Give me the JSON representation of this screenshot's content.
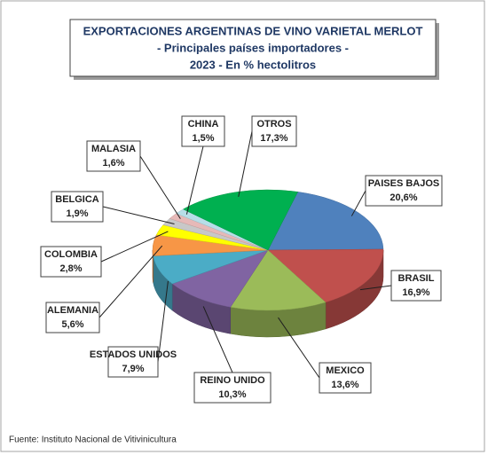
{
  "chart_data": {
    "type": "pie",
    "title": [
      "EXPORTACIONES ARGENTINAS DE VINO VARIETAL MERLOT",
      "- Principales países importadores -",
      "2023 - En % hectolitros"
    ],
    "source": "Fuente: Instituto Nacional de Vitivinicultura",
    "categories": [
      "PAISES BAJOS",
      "BRASIL",
      "MEXICO",
      "REINO UNIDO",
      "ESTADOS UNIDOS",
      "ALEMANIA",
      "COLOMBIA",
      "BELGICA",
      "MALASIA",
      "CHINA",
      "OTROS"
    ],
    "values": [
      20.6,
      16.9,
      13.6,
      10.3,
      7.9,
      5.6,
      2.8,
      1.9,
      1.6,
      1.5,
      17.3
    ],
    "value_labels": [
      "20,6%",
      "16,9%",
      "13,6%",
      "10,3%",
      "7,9%",
      "5,6%",
      "2,8%",
      "1,9%",
      "1,6%",
      "1,5%",
      "17,3%"
    ],
    "colors": [
      "#4f81bd",
      "#c0504d",
      "#9bbb59",
      "#8064a2",
      "#4bacc6",
      "#f79646",
      "#ffff00",
      "#c8c8c8",
      "#e6b9b8",
      "#b7dee8",
      "#00b050"
    ]
  }
}
